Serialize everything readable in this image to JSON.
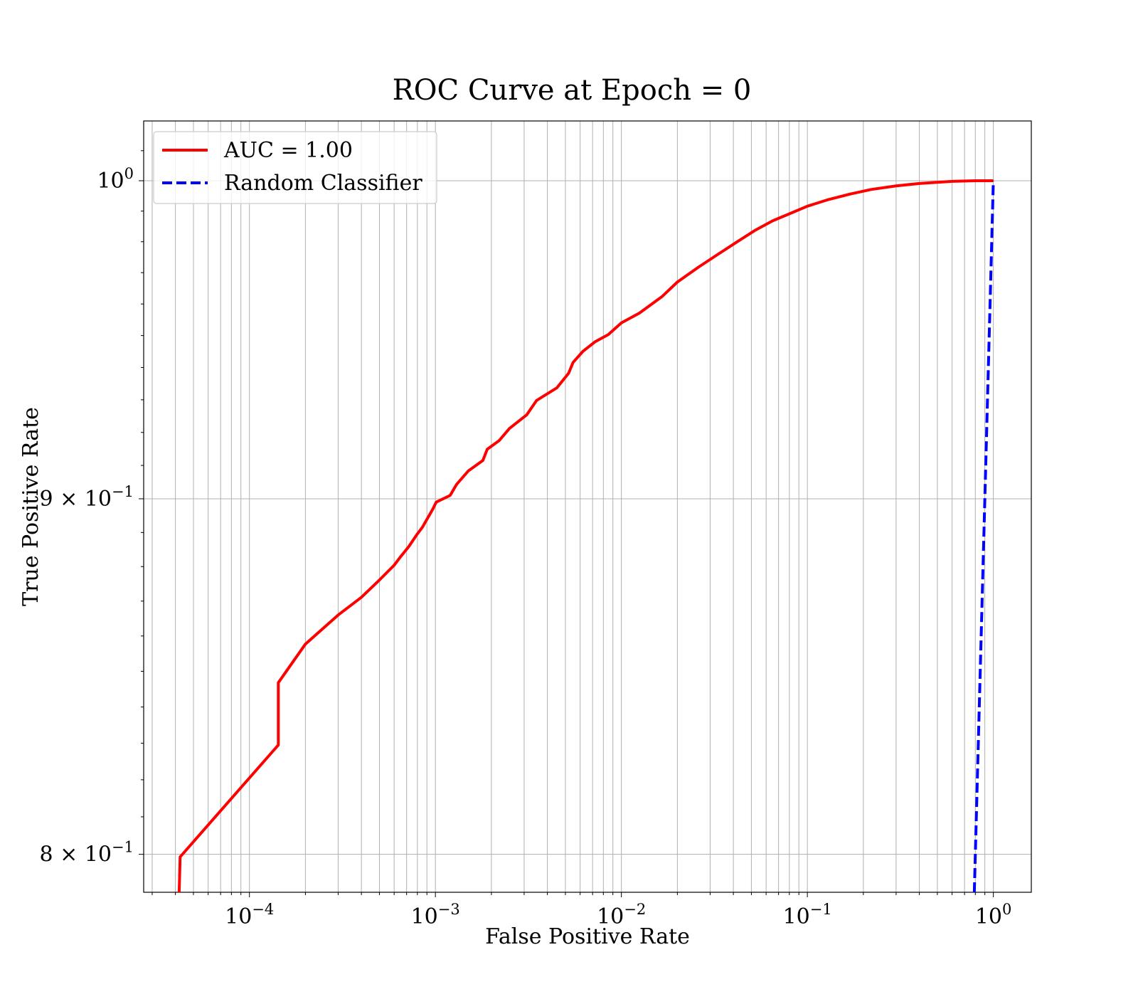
{
  "chart_data": {
    "type": "line",
    "title": "ROC Curve at Epoch = 0",
    "xlabel": "False Positive Rate",
    "ylabel": "True Positive Rate",
    "x_scale": "log",
    "y_scale": "log",
    "xlim": [
      2.7e-05,
      1.6
    ],
    "ylim": [
      0.79,
      1.02
    ],
    "grid": {
      "major": true,
      "minor_x": true
    },
    "legend_position": "top-left",
    "x_ticks": [
      {
        "value": 0.0001,
        "base": "10",
        "exp": "−4"
      },
      {
        "value": 0.001,
        "base": "10",
        "exp": "−3"
      },
      {
        "value": 0.01,
        "base": "10",
        "exp": "−2"
      },
      {
        "value": 0.1,
        "base": "10",
        "exp": "−1"
      },
      {
        "value": 1,
        "base": "10",
        "exp": "0"
      }
    ],
    "y_ticks": [
      {
        "value": 1.0,
        "mantissa": "",
        "base": "10",
        "exp": "0"
      },
      {
        "value": 0.9,
        "mantissa": "9",
        "base": "10",
        "exp": "−1"
      },
      {
        "value": 0.8,
        "mantissa": "8",
        "base": "10",
        "exp": "−1"
      }
    ],
    "series": [
      {
        "name": "AUC = 1.00",
        "color": "#ff0000",
        "style": "solid",
        "x": [
          4.19e-05,
          4.24e-05,
          0.000143,
          0.000143,
          0.0002,
          0.0003,
          0.0004,
          0.0005,
          0.0006,
          0.00065,
          0.00072,
          0.0008,
          0.00085,
          0.00097,
          0.00101,
          0.0012,
          0.0013,
          0.0015,
          0.0018,
          0.0019,
          0.0022,
          0.0025,
          0.0031,
          0.0035,
          0.0045,
          0.0052,
          0.0055,
          0.0062,
          0.0072,
          0.0085,
          0.01,
          0.0125,
          0.0165,
          0.02,
          0.026,
          0.033,
          0.042,
          0.052,
          0.065,
          0.08,
          0.1,
          0.13,
          0.17,
          0.22,
          0.3,
          0.4,
          0.6,
          0.8,
          1.0
        ],
        "y": [
          0.79,
          0.7993,
          0.8295,
          0.8468,
          0.8577,
          0.866,
          0.8711,
          0.8761,
          0.8804,
          0.8829,
          0.8859,
          0.8896,
          0.8915,
          0.897,
          0.899,
          0.901,
          0.9043,
          0.9083,
          0.9115,
          0.9149,
          0.9175,
          0.9212,
          0.9254,
          0.9298,
          0.9337,
          0.9382,
          0.9416,
          0.945,
          0.948,
          0.9503,
          0.954,
          0.9571,
          0.9623,
          0.967,
          0.9718,
          0.9759,
          0.98,
          0.9836,
          0.9868,
          0.9891,
          0.9916,
          0.9938,
          0.9956,
          0.9971,
          0.9983,
          0.9991,
          0.9998,
          1.0,
          1.0
        ]
      },
      {
        "name": "Random Classifier",
        "color": "#0000ff",
        "style": "dashed",
        "x": [
          0.79,
          1.0
        ],
        "y": [
          0.79,
          1.0
        ]
      }
    ]
  }
}
